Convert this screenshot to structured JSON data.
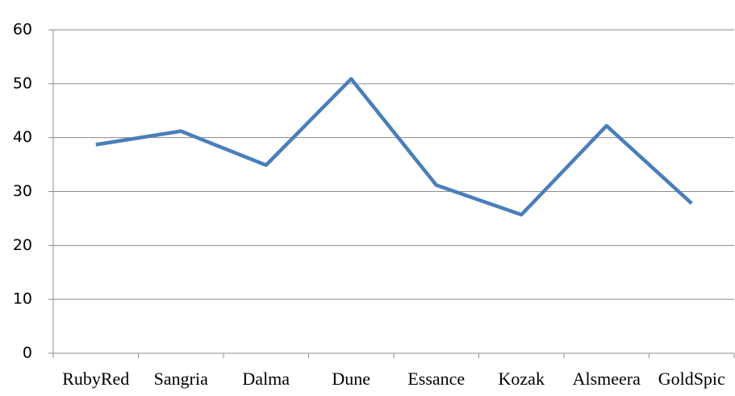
{
  "chart_data": {
    "type": "line",
    "categories": [
      "RubyRed",
      "Sangria",
      "Dalma",
      "Dune",
      "Essance",
      "Kozak",
      "Alsmeera",
      "GoldSpic"
    ],
    "values": [
      38.7,
      41.2,
      34.9,
      50.9,
      31.2,
      25.7,
      42.2,
      27.8
    ],
    "color": "#4a7ebb",
    "ylim": [
      0,
      60
    ],
    "yticks": [
      0,
      10,
      20,
      30,
      40,
      50,
      60
    ],
    "grid": true
  }
}
